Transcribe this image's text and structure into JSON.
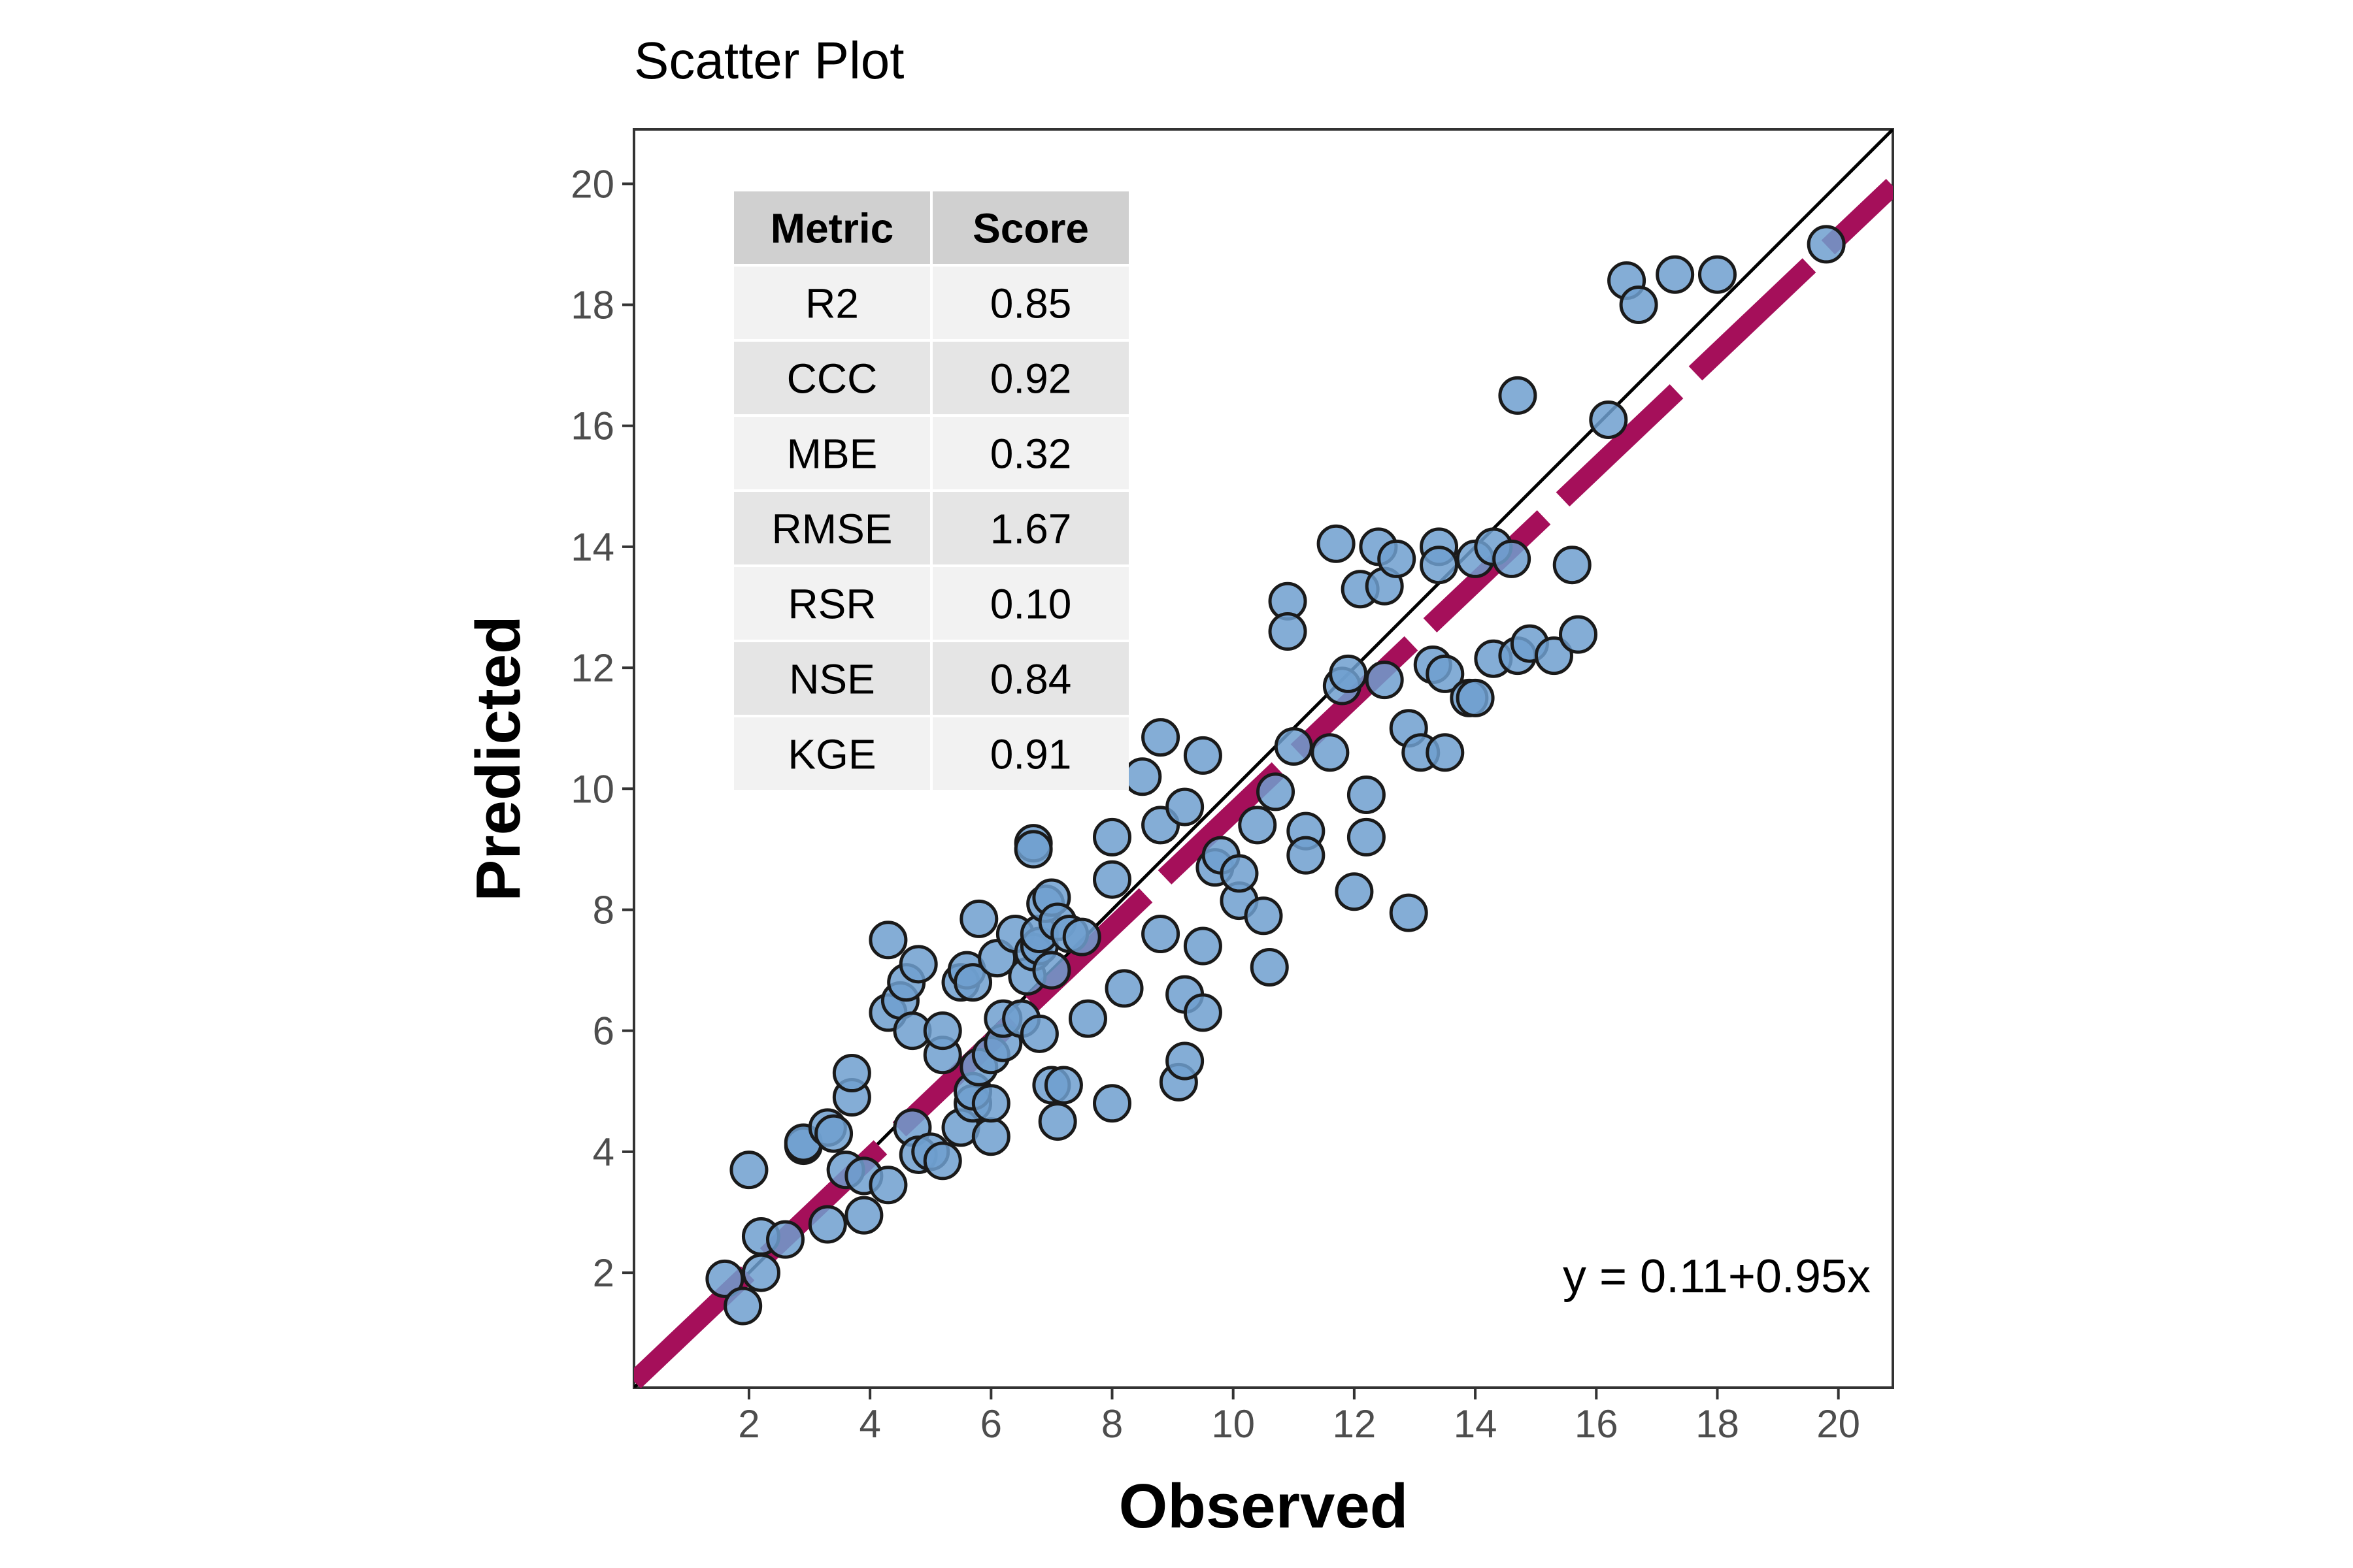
{
  "chart_data": {
    "type": "scatter",
    "title": "Scatter Plot",
    "xlabel": "Observed",
    "ylabel": "Predicted",
    "xlim": [
      0.1,
      20.9
    ],
    "ylim": [
      0.1,
      20.9
    ],
    "x_ticks": [
      2,
      4,
      6,
      8,
      10,
      12,
      14,
      16,
      18,
      20
    ],
    "y_ticks": [
      2,
      4,
      6,
      8,
      10,
      12,
      14,
      16,
      18,
      20
    ],
    "grid": false,
    "point_color": "#6f9fcf",
    "point_edge_color": "#1a1a1a",
    "fit_line_color": "#a50f5a",
    "identity_line_color": "#000000",
    "fit_line": {
      "intercept": 0.11,
      "slope": 0.95
    },
    "equation": "y = 0.11+0.95x",
    "table": {
      "placement": "top-left",
      "headers": [
        "Metric",
        "Score"
      ],
      "rows": [
        [
          "R2",
          "0.85"
        ],
        [
          "CCC",
          "0.92"
        ],
        [
          "MBE",
          "0.32"
        ],
        [
          "RMSE",
          "1.67"
        ],
        [
          "RSR",
          "0.10"
        ],
        [
          "NSE",
          "0.84"
        ],
        [
          "KGE",
          "0.91"
        ]
      ]
    },
    "points": [
      [
        1.6,
        1.9
      ],
      [
        1.9,
        1.45
      ],
      [
        2.0,
        3.7
      ],
      [
        2.2,
        2.0
      ],
      [
        2.2,
        2.6
      ],
      [
        2.6,
        2.55
      ],
      [
        2.9,
        4.1
      ],
      [
        2.9,
        4.15
      ],
      [
        3.3,
        2.8
      ],
      [
        3.3,
        4.4
      ],
      [
        3.4,
        4.3
      ],
      [
        3.6,
        3.7
      ],
      [
        3.7,
        4.9
      ],
      [
        3.7,
        5.3
      ],
      [
        3.9,
        2.95
      ],
      [
        3.9,
        3.6
      ],
      [
        4.3,
        3.45
      ],
      [
        4.3,
        6.3
      ],
      [
        4.3,
        7.5
      ],
      [
        4.5,
        6.5
      ],
      [
        4.6,
        6.8
      ],
      [
        4.7,
        4.4
      ],
      [
        4.7,
        6.0
      ],
      [
        4.8,
        7.1
      ],
      [
        4.8,
        3.95
      ],
      [
        5.0,
        4.0
      ],
      [
        5.2,
        3.85
      ],
      [
        5.2,
        5.6
      ],
      [
        5.2,
        6.0
      ],
      [
        5.5,
        6.8
      ],
      [
        5.5,
        4.4
      ],
      [
        5.6,
        7.0
      ],
      [
        5.7,
        4.8
      ],
      [
        5.7,
        5.0
      ],
      [
        5.7,
        6.8
      ],
      [
        5.8,
        7.85
      ],
      [
        5.8,
        5.4
      ],
      [
        6.0,
        4.25
      ],
      [
        6.0,
        4.8
      ],
      [
        6.0,
        5.6
      ],
      [
        6.1,
        7.2
      ],
      [
        6.2,
        5.8
      ],
      [
        6.2,
        6.2
      ],
      [
        6.4,
        7.6
      ],
      [
        6.5,
        6.2
      ],
      [
        6.6,
        6.9
      ],
      [
        6.7,
        9.1
      ],
      [
        6.7,
        9.0
      ],
      [
        6.7,
        7.3
      ],
      [
        6.8,
        5.95
      ],
      [
        6.8,
        7.4
      ],
      [
        6.8,
        7.6
      ],
      [
        6.9,
        8.1
      ],
      [
        7.0,
        8.2
      ],
      [
        7.0,
        5.1
      ],
      [
        7.0,
        7.0
      ],
      [
        7.1,
        7.8
      ],
      [
        7.1,
        4.5
      ],
      [
        7.2,
        5.1
      ],
      [
        7.3,
        7.6
      ],
      [
        7.5,
        7.55
      ],
      [
        7.6,
        6.2
      ],
      [
        8.0,
        4.8
      ],
      [
        8.0,
        8.5
      ],
      [
        8.0,
        9.2
      ],
      [
        8.2,
        6.7
      ],
      [
        8.5,
        10.2
      ],
      [
        8.8,
        7.6
      ],
      [
        8.8,
        10.85
      ],
      [
        8.8,
        9.4
      ],
      [
        9.1,
        5.15
      ],
      [
        9.2,
        5.5
      ],
      [
        9.2,
        6.6
      ],
      [
        9.2,
        9.7
      ],
      [
        9.5,
        7.4
      ],
      [
        9.5,
        10.55
      ],
      [
        9.5,
        6.3
      ],
      [
        9.7,
        8.7
      ],
      [
        9.8,
        8.9
      ],
      [
        10.1,
        8.15
      ],
      [
        10.1,
        8.6
      ],
      [
        10.4,
        9.4
      ],
      [
        10.5,
        7.9
      ],
      [
        10.6,
        7.05
      ],
      [
        10.7,
        9.95
      ],
      [
        10.9,
        13.1
      ],
      [
        10.9,
        12.6
      ],
      [
        11.0,
        10.7
      ],
      [
        11.2,
        9.3
      ],
      [
        11.2,
        8.9
      ],
      [
        11.6,
        10.6
      ],
      [
        11.7,
        14.05
      ],
      [
        11.8,
        11.7
      ],
      [
        11.9,
        11.9
      ],
      [
        12.0,
        8.3
      ],
      [
        12.1,
        13.3
      ],
      [
        12.2,
        9.9
      ],
      [
        12.2,
        9.2
      ],
      [
        12.4,
        14.0
      ],
      [
        12.5,
        13.35
      ],
      [
        12.5,
        11.8
      ],
      [
        12.7,
        13.8
      ],
      [
        12.9,
        11.0
      ],
      [
        12.9,
        7.95
      ],
      [
        13.1,
        10.6
      ],
      [
        13.3,
        12.05
      ],
      [
        13.4,
        14.0
      ],
      [
        13.4,
        13.7
      ],
      [
        13.5,
        11.9
      ],
      [
        13.5,
        10.6
      ],
      [
        13.9,
        11.5
      ],
      [
        14.0,
        11.5
      ],
      [
        14.0,
        13.8
      ],
      [
        14.3,
        14.0
      ],
      [
        14.3,
        12.15
      ],
      [
        14.6,
        13.8
      ],
      [
        14.7,
        16.5
      ],
      [
        14.7,
        12.2
      ],
      [
        14.9,
        12.4
      ],
      [
        15.3,
        12.2
      ],
      [
        15.6,
        13.7
      ],
      [
        15.7,
        12.55
      ],
      [
        16.2,
        16.1
      ],
      [
        16.5,
        18.4
      ],
      [
        16.7,
        18.0
      ],
      [
        17.3,
        18.5
      ],
      [
        18.0,
        18.5
      ],
      [
        19.8,
        19.0
      ]
    ]
  }
}
